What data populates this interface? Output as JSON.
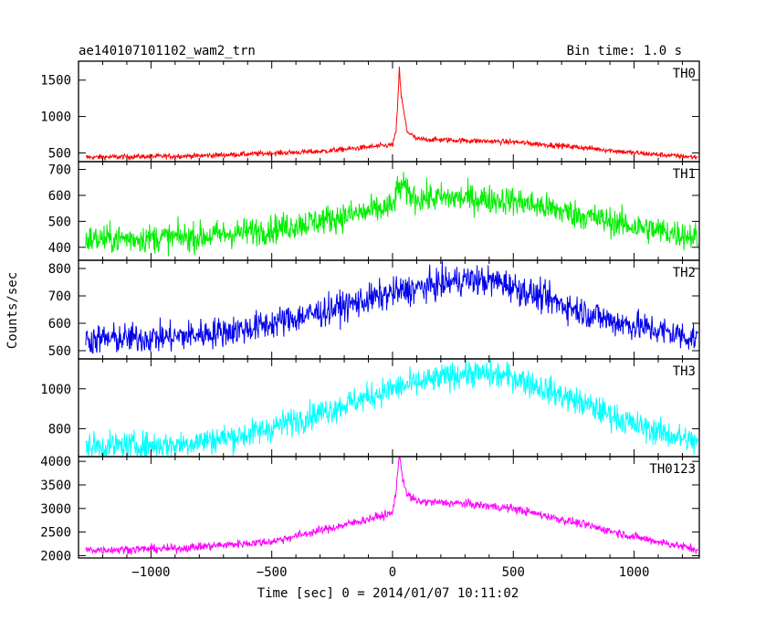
{
  "header": {
    "title": "ae140107101102_wam2_trn",
    "bin_time": "Bin time: 1.0 s"
  },
  "axes": {
    "xlabel": "Time [sec] 0 = 2014/01/07 10:11:02",
    "ylabel": "Counts/sec"
  },
  "chart_data": {
    "type": "line",
    "x_range": [
      -1300,
      1270
    ],
    "x_ticks": [
      -1000,
      -500,
      0,
      500,
      1000
    ],
    "x_tick_labels": [
      "−1000",
      "−500",
      "0",
      "500",
      "1000"
    ],
    "panels": [
      {
        "name": "TH0",
        "color": "#ff0000",
        "ylim": [
          380,
          1760
        ],
        "y_ticks": [
          500,
          1000,
          1500
        ],
        "profile": {
          "x": [
            -1270,
            -800,
            -300,
            -100,
            0,
            15,
            25,
            28,
            35,
            45,
            60,
            100,
            200,
            500,
            800,
            1000,
            1260
          ],
          "y": [
            440,
            460,
            520,
            580,
            610,
            800,
            1400,
            1700,
            1300,
            1100,
            800,
            690,
            680,
            650,
            570,
            500,
            440
          ]
        },
        "noise": 18
      },
      {
        "name": "TH1",
        "color": "#00ee00",
        "ylim": [
          350,
          730
        ],
        "y_ticks": [
          400,
          500,
          600,
          700
        ],
        "profile": {
          "x": [
            -1270,
            -800,
            -500,
            -200,
            0,
            20,
            40,
            60,
            100,
            300,
            500,
            700,
            1000,
            1260
          ],
          "y": [
            430,
            440,
            470,
            520,
            555,
            620,
            640,
            610,
            590,
            590,
            580,
            540,
            480,
            440
          ]
        },
        "noise": 28
      },
      {
        "name": "TH2",
        "color": "#0000ee",
        "ylim": [
          470,
          830
        ],
        "y_ticks": [
          500,
          600,
          700,
          800
        ],
        "profile": {
          "x": [
            -1270,
            -900,
            -600,
            -300,
            0,
            300,
            450,
            600,
            900,
            1260
          ],
          "y": [
            540,
            550,
            580,
            640,
            710,
            760,
            750,
            700,
            610,
            545
          ]
        },
        "noise": 28
      },
      {
        "name": "TH3",
        "color": "#00ffff",
        "ylim": [
          660,
          1150
        ],
        "y_ticks": [
          800,
          1000
        ],
        "profile": {
          "x": [
            -1270,
            -900,
            -600,
            -300,
            0,
            300,
            500,
            800,
            1000,
            1260
          ],
          "y": [
            710,
            720,
            770,
            880,
            1000,
            1080,
            1060,
            920,
            820,
            730
          ]
        },
        "noise": 35
      },
      {
        "name": "TH0123",
        "color": "#ff00ff",
        "ylim": [
          1950,
          4100
        ],
        "y_ticks": [
          2000,
          2500,
          3000,
          3500,
          4000
        ],
        "profile": {
          "x": [
            -1270,
            -900,
            -500,
            -200,
            0,
            15,
            25,
            30,
            40,
            60,
            100,
            300,
            500,
            800,
            1000,
            1260
          ],
          "y": [
            2120,
            2150,
            2300,
            2650,
            2900,
            3400,
            4000,
            4150,
            3700,
            3300,
            3150,
            3100,
            3000,
            2650,
            2400,
            2130
          ]
        },
        "noise": 45
      }
    ]
  }
}
